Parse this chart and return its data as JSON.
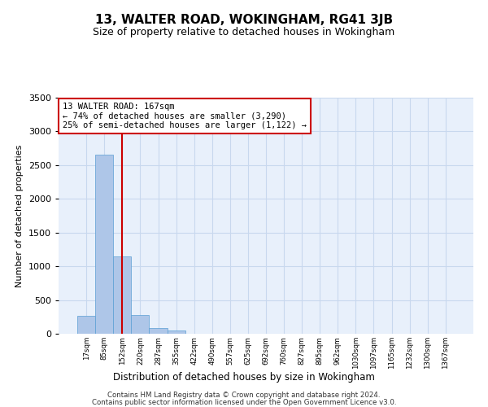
{
  "title": "13, WALTER ROAD, WOKINGHAM, RG41 3JB",
  "subtitle": "Size of property relative to detached houses in Wokingham",
  "xlabel": "Distribution of detached houses by size in Wokingham",
  "ylabel": "Number of detached properties",
  "bin_labels": [
    "17sqm",
    "85sqm",
    "152sqm",
    "220sqm",
    "287sqm",
    "355sqm",
    "422sqm",
    "490sqm",
    "557sqm",
    "625sqm",
    "692sqm",
    "760sqm",
    "827sqm",
    "895sqm",
    "962sqm",
    "1030sqm",
    "1097sqm",
    "1165sqm",
    "1232sqm",
    "1300sqm",
    "1367sqm"
  ],
  "bar_heights": [
    270,
    2650,
    1150,
    275,
    90,
    48,
    5,
    3,
    2,
    1,
    0,
    0,
    0,
    0,
    0,
    0,
    0,
    0,
    0,
    0,
    0
  ],
  "bar_color": "#aec6e8",
  "bar_edge_color": "#5a9fd4",
  "annotation_line1": "13 WALTER ROAD: 167sqm",
  "annotation_line2": "← 74% of detached houses are smaller (3,290)",
  "annotation_line3": "25% of semi-detached houses are larger (1,122) →",
  "red_line_color": "#cc0000",
  "annotation_box_color": "#cc0000",
  "red_line_x": 2.0,
  "ylim": [
    0,
    3500
  ],
  "yticks": [
    0,
    500,
    1000,
    1500,
    2000,
    2500,
    3000,
    3500
  ],
  "grid_color": "#c8d8ee",
  "background_color": "#e8f0fb",
  "footnote1": "Contains HM Land Registry data © Crown copyright and database right 2024.",
  "footnote2": "Contains public sector information licensed under the Open Government Licence v3.0."
}
